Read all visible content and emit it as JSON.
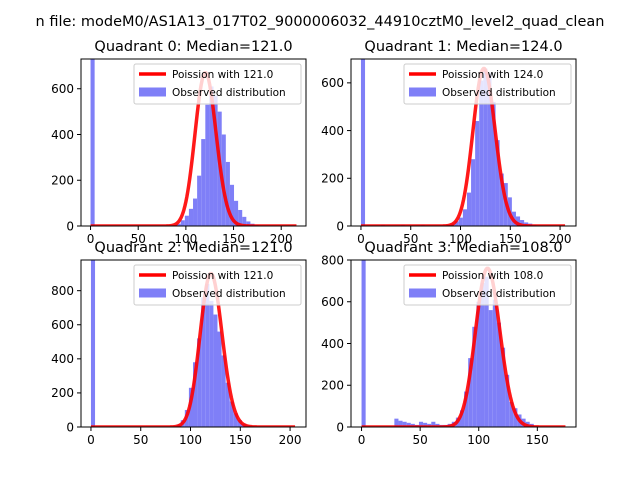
{
  "figure": {
    "suptitle": "n file: modeM0/AS1A13_017T02_9000006032_44910cztM0_level2_quad_clean"
  },
  "chart_data": [
    {
      "type": "histogram",
      "title": "Quadrant 0: Median=121.0",
      "xlim": [
        -10,
        226
      ],
      "ylim": [
        0,
        730
      ],
      "xticks": [
        0,
        50,
        100,
        150,
        200
      ],
      "xticklabels": [
        "0",
        "50",
        "100",
        "150",
        "200"
      ],
      "yticks": [
        0,
        200,
        400,
        600
      ],
      "yticklabels": [
        "0",
        "200",
        "400",
        "600"
      ],
      "legend_position": "top-right",
      "legend": [
        "Poission with 121.0",
        "Observed distribution"
      ],
      "poisson_mean": 121.0,
      "poisson_peak": 670,
      "poisson_range": [
        0,
        216
      ],
      "bins": [
        {
          "x0": 0,
          "x1": 4.3,
          "y": 730
        },
        {
          "x0": 86,
          "x1": 90.3,
          "y": 5
        },
        {
          "x0": 90.3,
          "x1": 94.6,
          "y": 10
        },
        {
          "x0": 94.6,
          "x1": 98.9,
          "y": 25
        },
        {
          "x0": 98.9,
          "x1": 103.2,
          "y": 45
        },
        {
          "x0": 103.2,
          "x1": 107.5,
          "y": 75
        },
        {
          "x0": 107.5,
          "x1": 111.8,
          "y": 120
        },
        {
          "x0": 111.8,
          "x1": 116.1,
          "y": 220
        },
        {
          "x0": 116.1,
          "x1": 120.4,
          "y": 380
        },
        {
          "x0": 120.4,
          "x1": 124.7,
          "y": 530
        },
        {
          "x0": 124.7,
          "x1": 129,
          "y": 610
        },
        {
          "x0": 129,
          "x1": 133.3,
          "y": 570
        },
        {
          "x0": 133.3,
          "x1": 137.6,
          "y": 500
        },
        {
          "x0": 137.6,
          "x1": 141.9,
          "y": 400
        },
        {
          "x0": 141.9,
          "x1": 146.2,
          "y": 280
        },
        {
          "x0": 146.2,
          "x1": 150.5,
          "y": 180
        },
        {
          "x0": 150.5,
          "x1": 154.8,
          "y": 110
        },
        {
          "x0": 154.8,
          "x1": 159.1,
          "y": 70
        },
        {
          "x0": 159.1,
          "x1": 163.4,
          "y": 40
        },
        {
          "x0": 163.4,
          "x1": 167.7,
          "y": 20
        },
        {
          "x0": 167.7,
          "x1": 172,
          "y": 10
        },
        {
          "x0": 172,
          "x1": 176.3,
          "y": 5
        }
      ]
    },
    {
      "type": "histogram",
      "title": "Quadrant 1: Median=124.0",
      "xlim": [
        -10,
        216
      ],
      "ylim": [
        0,
        700
      ],
      "xticks": [
        0,
        50,
        100,
        150,
        200
      ],
      "xticklabels": [
        "0",
        "50",
        "100",
        "150",
        "200"
      ],
      "yticks": [
        0,
        200,
        400,
        600
      ],
      "yticklabels": [
        "0",
        "200",
        "400",
        "600"
      ],
      "legend_position": "top-right",
      "legend": [
        "Poission with 124.0",
        "Observed distribution"
      ],
      "poisson_mean": 124.0,
      "poisson_peak": 660,
      "poisson_range": [
        0,
        205
      ],
      "bins": [
        {
          "x0": 0,
          "x1": 4.1,
          "y": 700
        },
        {
          "x0": 20,
          "x1": 24.1,
          "y": 5
        },
        {
          "x0": 40,
          "x1": 44.1,
          "y": 5
        },
        {
          "x0": 60,
          "x1": 64.1,
          "y": 5
        },
        {
          "x0": 86,
          "x1": 90.1,
          "y": 5
        },
        {
          "x0": 90.1,
          "x1": 94.2,
          "y": 10
        },
        {
          "x0": 94.2,
          "x1": 98.3,
          "y": 20
        },
        {
          "x0": 98.3,
          "x1": 102.4,
          "y": 35
        },
        {
          "x0": 102.4,
          "x1": 106.5,
          "y": 70
        },
        {
          "x0": 106.5,
          "x1": 110.6,
          "y": 140
        },
        {
          "x0": 110.6,
          "x1": 114.7,
          "y": 280
        },
        {
          "x0": 114.7,
          "x1": 118.8,
          "y": 440
        },
        {
          "x0": 118.8,
          "x1": 122.9,
          "y": 610
        },
        {
          "x0": 122.9,
          "x1": 127,
          "y": 660
        },
        {
          "x0": 127,
          "x1": 131.1,
          "y": 640
        },
        {
          "x0": 131.1,
          "x1": 135.2,
          "y": 520
        },
        {
          "x0": 135.2,
          "x1": 139.3,
          "y": 360
        },
        {
          "x0": 139.3,
          "x1": 143.4,
          "y": 220
        },
        {
          "x0": 143.4,
          "x1": 147.5,
          "y": 180
        },
        {
          "x0": 147.5,
          "x1": 151.6,
          "y": 120
        },
        {
          "x0": 151.6,
          "x1": 155.7,
          "y": 60
        },
        {
          "x0": 155.7,
          "x1": 159.8,
          "y": 40
        },
        {
          "x0": 159.8,
          "x1": 163.9,
          "y": 25
        },
        {
          "x0": 163.9,
          "x1": 168,
          "y": 15
        },
        {
          "x0": 168,
          "x1": 172.1,
          "y": 10
        },
        {
          "x0": 172.1,
          "x1": 176.2,
          "y": 5
        }
      ]
    },
    {
      "type": "histogram",
      "title": "Quadrant 2: Median=121.0",
      "xlim": [
        -10,
        216
      ],
      "ylim": [
        0,
        980
      ],
      "xticks": [
        0,
        50,
        100,
        150,
        200
      ],
      "xticklabels": [
        "0",
        "50",
        "100",
        "150",
        "200"
      ],
      "yticks": [
        0,
        200,
        400,
        600,
        800
      ],
      "yticklabels": [
        "0",
        "200",
        "400",
        "600",
        "800"
      ],
      "legend_position": "top-right",
      "legend": [
        "Poission with 121.0",
        "Observed distribution"
      ],
      "poisson_mean": 121.0,
      "poisson_peak": 900,
      "poisson_range": [
        0,
        205
      ],
      "bins": [
        {
          "x0": 0,
          "x1": 4.1,
          "y": 980
        },
        {
          "x0": 82,
          "x1": 86.1,
          "y": 5
        },
        {
          "x0": 86.1,
          "x1": 90.2,
          "y": 15
        },
        {
          "x0": 90.2,
          "x1": 94.3,
          "y": 40
        },
        {
          "x0": 94.3,
          "x1": 98.4,
          "y": 100
        },
        {
          "x0": 98.4,
          "x1": 102.5,
          "y": 230
        },
        {
          "x0": 102.5,
          "x1": 106.6,
          "y": 380
        },
        {
          "x0": 106.6,
          "x1": 110.7,
          "y": 520
        },
        {
          "x0": 110.7,
          "x1": 114.8,
          "y": 760
        },
        {
          "x0": 114.8,
          "x1": 118.9,
          "y": 840
        },
        {
          "x0": 118.9,
          "x1": 123,
          "y": 740
        },
        {
          "x0": 123,
          "x1": 127.1,
          "y": 660
        },
        {
          "x0": 127.1,
          "x1": 131.2,
          "y": 560
        },
        {
          "x0": 131.2,
          "x1": 135.3,
          "y": 420
        },
        {
          "x0": 135.3,
          "x1": 139.4,
          "y": 260
        },
        {
          "x0": 139.4,
          "x1": 143.5,
          "y": 150
        },
        {
          "x0": 143.5,
          "x1": 147.6,
          "y": 80
        },
        {
          "x0": 147.6,
          "x1": 151.7,
          "y": 40
        },
        {
          "x0": 151.7,
          "x1": 155.8,
          "y": 20
        },
        {
          "x0": 155.8,
          "x1": 159.9,
          "y": 10
        },
        {
          "x0": 159.9,
          "x1": 164,
          "y": 5
        }
      ]
    },
    {
      "type": "histogram",
      "title": "Quadrant 3: Median=108.0",
      "xlim": [
        -9,
        183
      ],
      "ylim": [
        0,
        800
      ],
      "xticks": [
        0,
        50,
        100,
        150
      ],
      "xticklabels": [
        "0",
        "50",
        "100",
        "150"
      ],
      "yticks": [
        0,
        200,
        400,
        600,
        800
      ],
      "yticklabels": [
        "0",
        "200",
        "400",
        "600",
        "800"
      ],
      "legend_position": "top-right",
      "legend": [
        "Poission with 108.0",
        "Observed distribution"
      ],
      "poisson_mean": 108.0,
      "poisson_peak": 760,
      "poisson_range": [
        0,
        174
      ],
      "bins": [
        {
          "x0": 0,
          "x1": 3.5,
          "y": 800
        },
        {
          "x0": 28,
          "x1": 31.5,
          "y": 40
        },
        {
          "x0": 31.5,
          "x1": 35,
          "y": 30
        },
        {
          "x0": 35,
          "x1": 38.5,
          "y": 25
        },
        {
          "x0": 38.5,
          "x1": 42,
          "y": 20
        },
        {
          "x0": 42,
          "x1": 45.5,
          "y": 15
        },
        {
          "x0": 45.5,
          "x1": 49,
          "y": 10
        },
        {
          "x0": 49,
          "x1": 52.5,
          "y": 25
        },
        {
          "x0": 52.5,
          "x1": 56,
          "y": 20
        },
        {
          "x0": 56,
          "x1": 59.5,
          "y": 15
        },
        {
          "x0": 59.5,
          "x1": 63,
          "y": 25
        },
        {
          "x0": 63,
          "x1": 66.5,
          "y": 15
        },
        {
          "x0": 66.5,
          "x1": 70,
          "y": 10
        },
        {
          "x0": 70,
          "x1": 73.5,
          "y": 10
        },
        {
          "x0": 73.5,
          "x1": 77,
          "y": 15
        },
        {
          "x0": 77,
          "x1": 80.5,
          "y": 25
        },
        {
          "x0": 80.5,
          "x1": 84,
          "y": 45
        },
        {
          "x0": 84,
          "x1": 87.5,
          "y": 80
        },
        {
          "x0": 87.5,
          "x1": 91,
          "y": 170
        },
        {
          "x0": 91,
          "x1": 94.5,
          "y": 330
        },
        {
          "x0": 94.5,
          "x1": 98,
          "y": 480
        },
        {
          "x0": 98,
          "x1": 101.5,
          "y": 600
        },
        {
          "x0": 101.5,
          "x1": 105,
          "y": 690
        },
        {
          "x0": 105,
          "x1": 108.5,
          "y": 720
        },
        {
          "x0": 108.5,
          "x1": 112,
          "y": 560
        },
        {
          "x0": 112,
          "x1": 115.5,
          "y": 610
        },
        {
          "x0": 115.5,
          "x1": 119,
          "y": 500
        },
        {
          "x0": 119,
          "x1": 122.5,
          "y": 380
        },
        {
          "x0": 122.5,
          "x1": 126,
          "y": 250
        },
        {
          "x0": 126,
          "x1": 129.5,
          "y": 120
        },
        {
          "x0": 129.5,
          "x1": 133,
          "y": 90
        },
        {
          "x0": 133,
          "x1": 136.5,
          "y": 60
        },
        {
          "x0": 136.5,
          "x1": 140,
          "y": 40
        },
        {
          "x0": 140,
          "x1": 143.5,
          "y": 25
        },
        {
          "x0": 143.5,
          "x1": 147,
          "y": 15
        },
        {
          "x0": 147,
          "x1": 150.5,
          "y": 5
        }
      ]
    }
  ],
  "colors": {
    "observed": "#7f7ff7",
    "poisson": "#ff0000",
    "axis": "#000000",
    "legend_border": "#cccccc"
  }
}
